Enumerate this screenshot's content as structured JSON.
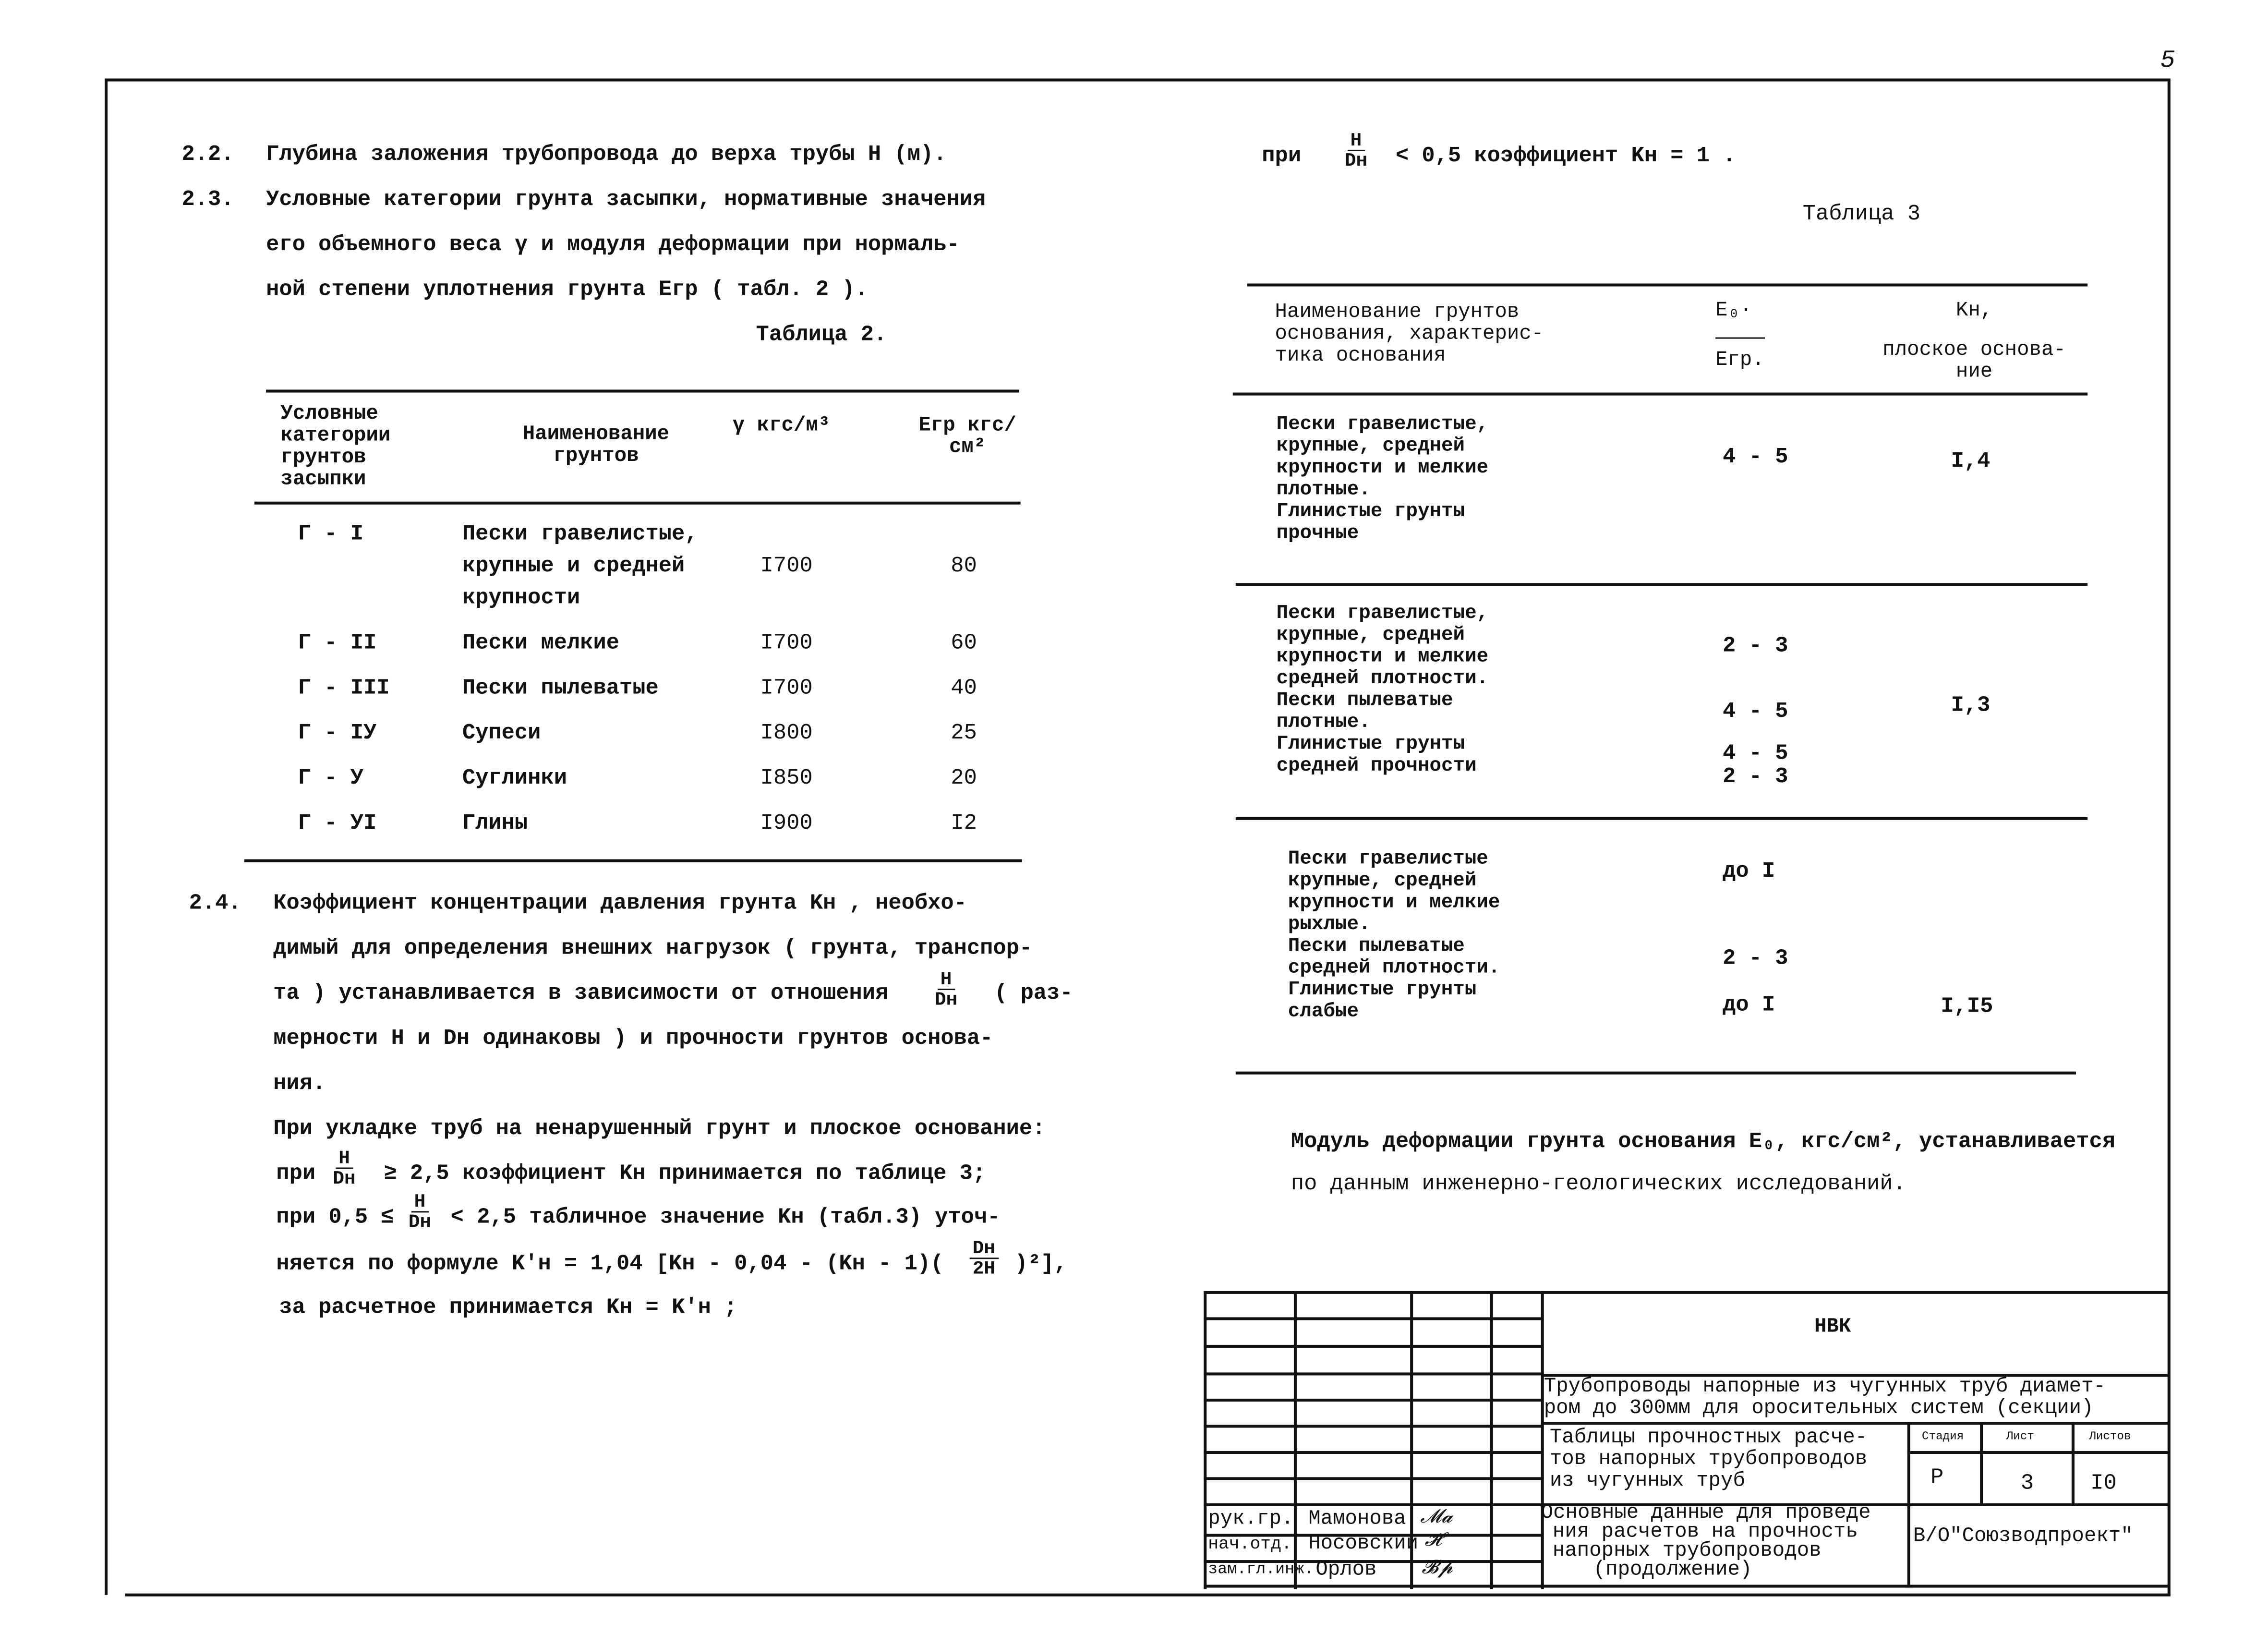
{
  "page_number": "5",
  "left": {
    "s22": {
      "num": "2.2.",
      "text": "Глубина заложения трубопровода до верха трубы Н (м)."
    },
    "s23": {
      "num": "2.3.",
      "lines": [
        "Условные категории грунта засыпки, нормативные значения",
        "его объемного веса γ и модуля деформации при нормаль-",
        "ной степени уплотнения грунта  Eгр   ( табл. 2 )."
      ]
    },
    "table2": {
      "caption": "Таблица 2.",
      "headers": [
        "Условные категории грунтов засыпки",
        "Наименование грунтов",
        "γ кгс/м³",
        "Eгр кгс/см²"
      ],
      "rows": [
        {
          "cat": "Г - I",
          "name": [
            "Пески гравелистые,",
            "крупные и средней",
            "крупности"
          ],
          "gamma": "I700",
          "e": "80"
        },
        {
          "cat": "Г - II",
          "name": [
            "Пески мелкие"
          ],
          "gamma": "I700",
          "e": "60"
        },
        {
          "cat": "Г - III",
          "name": [
            "Пески пылеватые"
          ],
          "gamma": "I700",
          "e": "40"
        },
        {
          "cat": "Г - IУ",
          "name": [
            "Супеси"
          ],
          "gamma": "I800",
          "e": "25"
        },
        {
          "cat": "Г - У",
          "name": [
            "Суглинки"
          ],
          "gamma": "I850",
          "e": "20"
        },
        {
          "cat": "Г - УI",
          "name": [
            "Глины"
          ],
          "gamma": "I900",
          "e": "I2"
        }
      ]
    },
    "s24": {
      "num": "2.4.",
      "lines": [
        "Коэффициент концентрации давления грунта  Kн  , необхо-",
        "димый для определения внешних нагрузок ( грунта, транспор-",
        "та ) устанавливается в зависимости от отношения",
        "( раз-",
        "мерности  H  и  Dн  одинаковы ) и прочности грунтов основа-",
        "ния.",
        "При укладке труб на ненарушенный грунт и плоское основание:",
        "при",
        "≥ 2,5   коэффициент  Kн  принимается по таблице 3;",
        "при 0,5 ≤",
        "< 2,5 табличное значение  Kн  (табл.3) уточ-",
        "няется по формуле   K'н = 1,04 [Kн - 0,04 - (Kн - 1)(",
        ")²],",
        "за расчетное принимается   Kн = K'н  ;"
      ],
      "frac_h": "H",
      "frac_d": "Dн",
      "frac_d2": "Dн",
      "frac_2h": "2H"
    }
  },
  "right": {
    "top_line": {
      "pre": "при",
      "post": "< 0,5 коэффициент  Kн = 1 ."
    },
    "table3": {
      "caption": "Таблица 3",
      "headers": {
        "name": [
          "Наименование грунтов",
          "основания, характерис-",
          "тика основания"
        ],
        "ratio_num": "E₀·",
        "ratio_den": "Eгр.",
        "k": [
          "Kн,",
          "плоское основа-",
          "ние"
        ]
      },
      "groups": [
        {
          "name": [
            "Пески гравелистые,",
            "крупные, средней",
            "крупности и мелкие",
            "плотные.",
            "Глинистые грунты",
            "прочные"
          ],
          "ratios": [
            "4 - 5"
          ],
          "k": "I,4"
        },
        {
          "name": [
            "Пески гравелистые,",
            "крупные, средней",
            "крупности и мелкие",
            "средней плотности.",
            "Пески пылеватые",
            "плотные.",
            "Глинистые грунты",
            "средней прочности"
          ],
          "ratios": [
            "2 - 3",
            "4 - 5",
            "4 - 5",
            "2 - 3"
          ],
          "k": "I,3"
        },
        {
          "name": [
            "Пески гравелистые",
            "крупные, средней",
            "крупности и мелкие",
            "рыхлые.",
            "Пески пылеватые",
            "средней плотности.",
            "Глинистые грунты",
            "слабые"
          ],
          "ratios": [
            "до I",
            "2 - 3",
            "до I"
          ],
          "k": "I,I5"
        }
      ]
    },
    "note": [
      "Модуль деформации грунта основания E₀, кгс/см², устанавливается",
      "по данным инженерно-геологических исследований."
    ]
  },
  "title_block": {
    "org_code": "НВК",
    "project": [
      "Трубопроводы напорные из чугунных труб диамет-",
      "ром до 300мм для оросительных систем (секции)"
    ],
    "album": [
      "Таблицы прочностных расче-",
      "тов напорных трубопроводов",
      "из чугунных труб"
    ],
    "stage_label": "Стадия",
    "sheet_label": "Лист",
    "sheets_label": "Листов",
    "stage": "Р",
    "sheet": "3",
    "sheets": "I0",
    "sheet_title": [
      "Основные данные для проведе",
      "ния расчетов на прочность",
      "напорных трубопроводов",
      "(продолжение)"
    ],
    "organization": "В/О\"Союзводпроект\"",
    "people": [
      {
        "role": "рук.гр.",
        "name": "Мамонова",
        "signature": "Мамон"
      },
      {
        "role": "нач.отд.",
        "name": "Носовский",
        "signature": "Нос"
      },
      {
        "role": "зам.гл.инж.",
        "name": "Орлов",
        "signature": "Орл"
      }
    ]
  }
}
